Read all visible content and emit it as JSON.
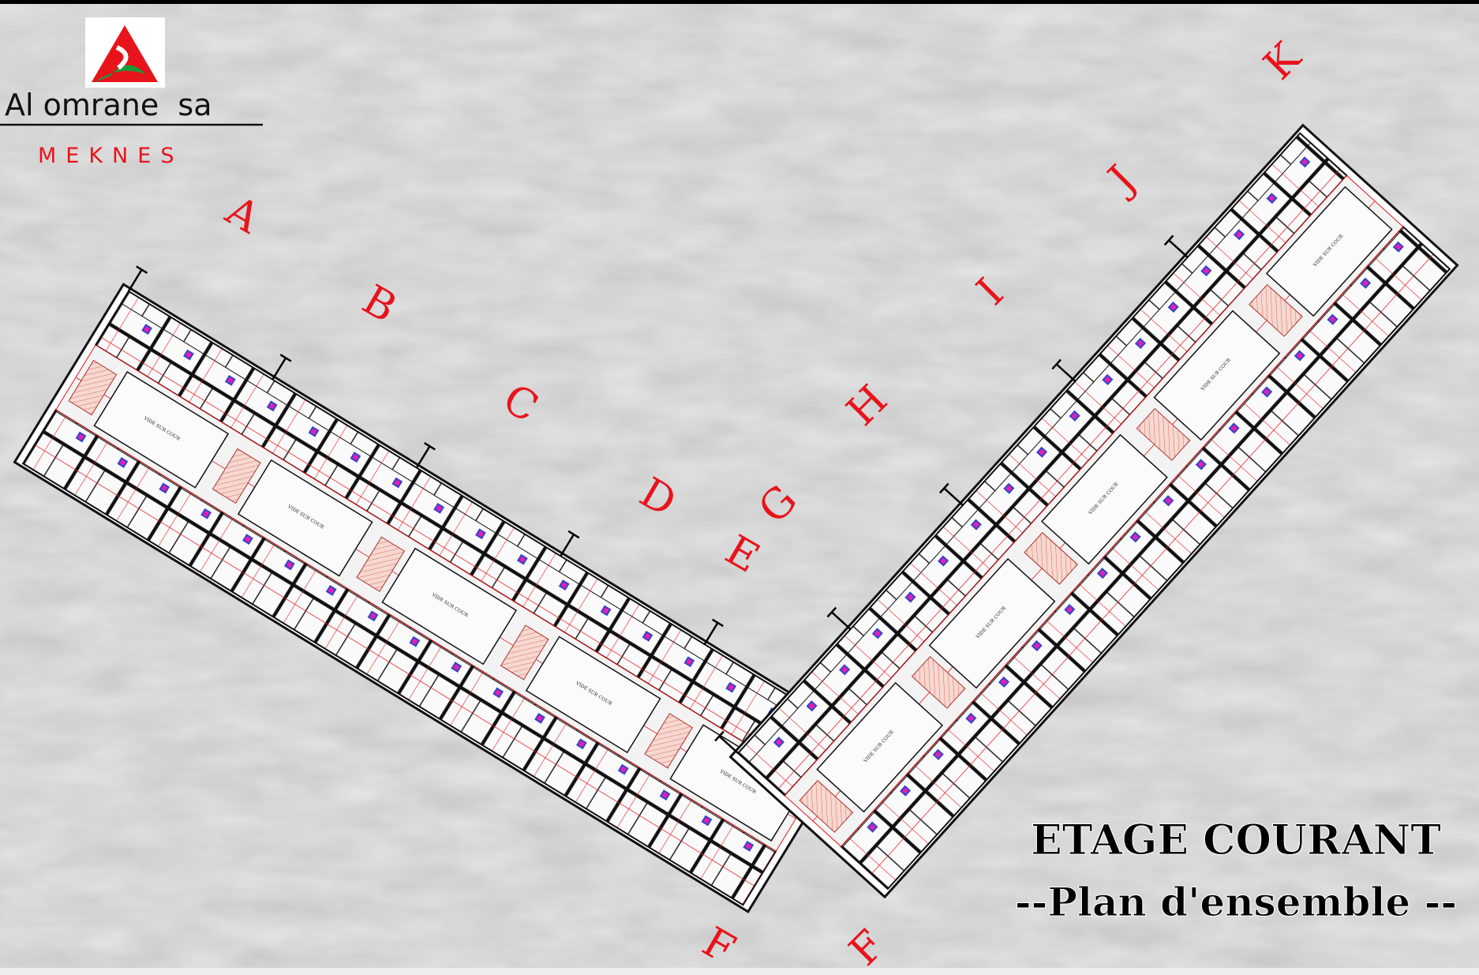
{
  "logo": {
    "name": "Al omrane  sa",
    "city": "MEKNES"
  },
  "blocks": [
    "A",
    "B",
    "C",
    "D",
    "E",
    "F",
    "F",
    "G",
    "H",
    "I",
    "J",
    "K"
  ],
  "courtyards": [
    "VIDE SUR COUR",
    "VIDE SUR COUR",
    "VIDE SUR COUR",
    "VIDE SUR COUR",
    "VIDE SUR COUR",
    "VIDE SUR COUR",
    "VIDE SUR COUR",
    "VIDE SUR COUR",
    "VIDE SUR COUR",
    "VIDE SUR COUR"
  ],
  "title": {
    "main": "ETAGE COURANT",
    "sub": "--Plan d'ensemble --"
  }
}
